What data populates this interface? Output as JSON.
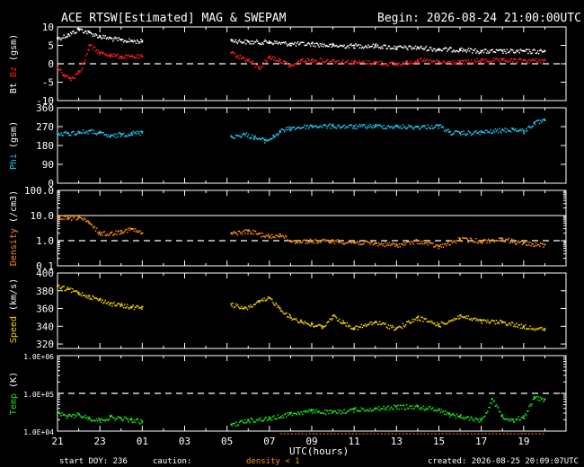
{
  "header": {
    "title": "ACE RTSW[Estimated] MAG & SWEPAM",
    "begin": "Begin: 2026-08-24 21:00:00UTC"
  },
  "footer": {
    "start_doy": "start DOY: 236",
    "caution": "caution:",
    "density_note": "density < 1",
    "created": "created: 2026-08-25 20:09:07UTC"
  },
  "colors": {
    "bt": "#ffffff",
    "bz": "#ff2020",
    "phi": "#20c8f0",
    "density": "#ff9010",
    "speed": "#f0d000",
    "temp": "#20e020",
    "axis": "#ffffff",
    "caution": "#ff9010"
  },
  "chart_data": {
    "type": "scatter",
    "x_tick_labels": [
      "21",
      "23",
      "01",
      "03",
      "05",
      "07",
      "09",
      "11",
      "13",
      "15",
      "17",
      "19"
    ],
    "xlabel": "UTC(hours)",
    "xlim": [
      0,
      24
    ],
    "panels": [
      {
        "id": "mag",
        "ylabel_parts": [
          {
            "text": "Bt",
            "color": "#ffffff"
          },
          {
            "text": "Bz",
            "color": "#ff2020"
          },
          {
            "text": "(gsm)",
            "color": "#ffffff"
          }
        ],
        "ylim": [
          -10,
          10
        ],
        "yticks": [
          -10,
          -5,
          0,
          5,
          10
        ],
        "ytick_labels": [
          "-10",
          "-5",
          "0",
          "5",
          "10"
        ],
        "dashed_line": 0,
        "series": [
          {
            "name": "Bt",
            "color": "#ffffff",
            "points": [
              [
                0,
                7
              ],
              [
                0.5,
                8
              ],
              [
                1,
                9.5
              ],
              [
                1.5,
                8.5
              ],
              [
                2,
                7.5
              ],
              [
                2.5,
                7
              ],
              [
                3,
                6.5
              ],
              [
                3.5,
                6.3
              ],
              [
                4,
                6.2
              ],
              [
                8.2,
                6.5
              ],
              [
                9,
                6
              ],
              [
                10,
                6
              ],
              [
                11,
                5.5
              ],
              [
                12,
                5.5
              ],
              [
                13,
                5
              ],
              [
                14,
                5
              ],
              [
                15,
                5
              ],
              [
                16,
                4.5
              ],
              [
                17,
                4.5
              ],
              [
                18,
                4
              ],
              [
                19,
                4
              ],
              [
                20,
                3.5
              ],
              [
                21,
                3.5
              ],
              [
                22,
                3.5
              ],
              [
                23,
                3.5
              ]
            ]
          },
          {
            "name": "Bz",
            "color": "#ff2020",
            "points": [
              [
                0,
                -1
              ],
              [
                0.3,
                -3
              ],
              [
                0.6,
                -4
              ],
              [
                1,
                -2
              ],
              [
                1.2,
                0
              ],
              [
                1.5,
                5
              ],
              [
                2,
                3
              ],
              [
                2.5,
                2.5
              ],
              [
                3,
                2
              ],
              [
                3.5,
                2
              ],
              [
                4,
                2
              ],
              [
                8.2,
                3
              ],
              [
                9,
                1
              ],
              [
                9.5,
                -1
              ],
              [
                10,
                2
              ],
              [
                10.5,
                1
              ],
              [
                11,
                -0.5
              ],
              [
                11.5,
                1
              ],
              [
                12,
                1
              ],
              [
                13,
                1
              ],
              [
                14,
                0.5
              ],
              [
                15,
                0.5
              ],
              [
                16,
                0
              ],
              [
                16.5,
                0.5
              ],
              [
                17,
                1
              ],
              [
                18,
                0.5
              ],
              [
                19,
                0.5
              ],
              [
                20,
                1
              ],
              [
                21,
                1
              ],
              [
                22,
                1
              ],
              [
                23,
                1
              ]
            ]
          }
        ]
      },
      {
        "id": "phi",
        "ylabel_parts": [
          {
            "text": "Phi",
            "color": "#20c8f0"
          },
          {
            "text": "(gsm)",
            "color": "#ffffff"
          }
        ],
        "ylim": [
          0,
          360
        ],
        "yticks": [
          0,
          90,
          180,
          270,
          360
        ],
        "ytick_labels": [
          "0",
          "90",
          "180",
          "270",
          "360"
        ],
        "dashed_line": null,
        "series": [
          {
            "name": "Phi",
            "color": "#20c8f0",
            "points": [
              [
                0,
                235
              ],
              [
                0.5,
                240
              ],
              [
                1,
                245
              ],
              [
                1.5,
                250
              ],
              [
                2,
                240
              ],
              [
                2.5,
                225
              ],
              [
                3,
                235
              ],
              [
                3.5,
                240
              ],
              [
                4,
                245
              ],
              [
                8.2,
                225
              ],
              [
                8.8,
                235
              ],
              [
                9.3,
                220
              ],
              [
                9.8,
                205
              ],
              [
                10.2,
                225
              ],
              [
                10.5,
                250
              ],
              [
                11,
                265
              ],
              [
                12,
                275
              ],
              [
                13,
                275
              ],
              [
                14,
                272
              ],
              [
                15,
                275
              ],
              [
                16,
                272
              ],
              [
                17,
                270
              ],
              [
                18,
                275
              ],
              [
                18.5,
                245
              ],
              [
                19,
                240
              ],
              [
                20,
                245
              ],
              [
                21,
                255
              ],
              [
                21.5,
                260
              ],
              [
                22,
                250
              ],
              [
                22.5,
                290
              ],
              [
                23,
                300
              ]
            ]
          }
        ]
      },
      {
        "id": "density",
        "ylabel_parts": [
          {
            "text": "Density",
            "color": "#ff9010"
          },
          {
            "text": "(/cm3)",
            "color": "#ffffff"
          }
        ],
        "ylim": [
          0.1,
          100
        ],
        "log": true,
        "yticks": [
          0.1,
          1,
          10,
          100
        ],
        "ytick_labels": [
          "0.1",
          "1.0",
          "10.0",
          "100.0"
        ],
        "dashed_line": 1,
        "solid_line": 10,
        "series": [
          {
            "name": "Density",
            "color": "#ff9010",
            "points": [
              [
                0,
                9
              ],
              [
                0.5,
                8
              ],
              [
                1,
                9
              ],
              [
                1.5,
                5
              ],
              [
                2,
                2
              ],
              [
                2.5,
                2
              ],
              [
                3,
                2.5
              ],
              [
                3.5,
                3
              ],
              [
                4,
                2
              ],
              [
                8.2,
                2
              ],
              [
                9,
                2.5
              ],
              [
                10,
                1.5
              ],
              [
                10.5,
                1.8
              ],
              [
                11,
                1
              ],
              [
                12,
                1
              ],
              [
                13,
                1
              ],
              [
                14,
                0.9
              ],
              [
                15,
                0.8
              ],
              [
                16,
                0.7
              ],
              [
                17,
                1
              ],
              [
                18,
                0.6
              ],
              [
                19,
                1.2
              ],
              [
                20,
                1
              ],
              [
                21,
                1.2
              ],
              [
                22,
                0.8
              ],
              [
                23,
                0.7
              ]
            ]
          }
        ]
      },
      {
        "id": "speed",
        "ylabel_parts": [
          {
            "text": "Speed",
            "color": "#f0d000"
          },
          {
            "text": "(km/s)",
            "color": "#ffffff"
          }
        ],
        "ylim": [
          315,
          400
        ],
        "yticks": [
          320,
          340,
          360,
          380,
          400
        ],
        "ytick_labels": [
          "320",
          "340",
          "360",
          "380",
          "400"
        ],
        "dashed_line": null,
        "series": [
          {
            "name": "Speed",
            "color": "#f0d000",
            "points": [
              [
                0,
                385
              ],
              [
                0.5,
                382
              ],
              [
                1,
                378
              ],
              [
                1.5,
                374
              ],
              [
                2,
                370
              ],
              [
                2.5,
                366
              ],
              [
                3,
                364
              ],
              [
                3.5,
                362
              ],
              [
                4,
                362
              ],
              [
                8.2,
                365
              ],
              [
                8.8,
                360
              ],
              [
                9.5,
                368
              ],
              [
                10,
                372
              ],
              [
                10.5,
                360
              ],
              [
                11,
                350
              ],
              [
                11.5,
                346
              ],
              [
                12,
                342
              ],
              [
                12.5,
                340
              ],
              [
                13,
                352
              ],
              [
                13.5,
                344
              ],
              [
                14,
                338
              ],
              [
                15,
                345
              ],
              [
                16,
                338
              ],
              [
                17,
                350
              ],
              [
                18,
                342
              ],
              [
                19,
                352
              ],
              [
                20,
                346
              ],
              [
                21,
                345
              ],
              [
                22,
                340
              ],
              [
                23,
                337
              ]
            ]
          }
        ]
      },
      {
        "id": "temp",
        "ylabel_parts": [
          {
            "text": "Temp",
            "color": "#20e020"
          },
          {
            "text": "(K)",
            "color": "#ffffff"
          }
        ],
        "ylim": [
          10000,
          1000000
        ],
        "log": true,
        "yticks": [
          10000,
          100000,
          1000000
        ],
        "ytick_labels": [
          "1.0E+04",
          "1.0E+05",
          "1.0E+06"
        ],
        "dashed_line": 100000,
        "series": [
          {
            "name": "Temp",
            "color": "#20e020",
            "points": [
              [
                0,
                30000
              ],
              [
                0.5,
                25000
              ],
              [
                1,
                28000
              ],
              [
                1.5,
                22000
              ],
              [
                2,
                20000
              ],
              [
                2.5,
                24000
              ],
              [
                3,
                22000
              ],
              [
                3.5,
                20000
              ],
              [
                4,
                18000
              ],
              [
                8.2,
                15000
              ],
              [
                9,
                20000
              ],
              [
                10,
                22000
              ],
              [
                11,
                30000
              ],
              [
                12,
                35000
              ],
              [
                13,
                32000
              ],
              [
                14,
                38000
              ],
              [
                15,
                40000
              ],
              [
                16,
                45000
              ],
              [
                17,
                45000
              ],
              [
                18,
                38000
              ],
              [
                18.5,
                28000
              ],
              [
                19,
                25000
              ],
              [
                20,
                20000
              ],
              [
                20.5,
                70000
              ],
              [
                21,
                25000
              ],
              [
                21.5,
                20000
              ],
              [
                22,
                25000
              ],
              [
                22.5,
                80000
              ],
              [
                23,
                70000
              ]
            ]
          }
        ]
      }
    ]
  }
}
